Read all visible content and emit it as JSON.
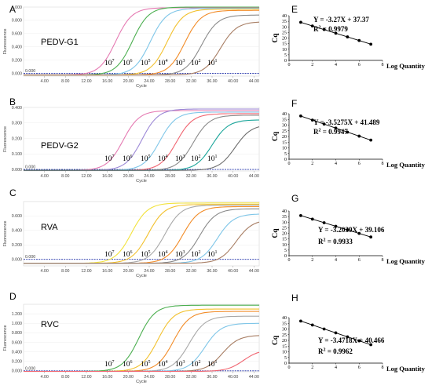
{
  "chart_data": [
    {
      "type": "line",
      "panel": "A",
      "target": "PEDV-G1",
      "xlabel": "Cycle",
      "ylabel": "Fluorescence",
      "threshold_label": "0.000",
      "xlim": [
        0,
        45
      ],
      "ylim": [
        -0.04,
        1.0
      ],
      "x_ticks": [
        "4.00",
        "8.00",
        "12.00",
        "16.00",
        "20.00",
        "24.00",
        "28.00",
        "32.00",
        "36.00",
        "40.00",
        "44.00"
      ],
      "y_ticks": [
        "0.000",
        "0.200",
        "0.400",
        "0.600",
        "0.800",
        "1.000"
      ],
      "concentration_labels": [
        "10",
        "10",
        "10",
        "10",
        "10",
        "10",
        "10"
      ],
      "concentration_exponents": [
        "7",
        "6",
        "5",
        "4",
        "3",
        "2",
        "1"
      ],
      "series": [
        {
          "color": "#e57ab2",
          "midpoint": 17.6,
          "max": 0.99
        },
        {
          "color": "#4caf50",
          "midpoint": 20.8,
          "max": 1.0
        },
        {
          "color": "#7fc6e8",
          "midpoint": 24.2,
          "max": 0.98
        },
        {
          "color": "#f2c12e",
          "midpoint": 27.4,
          "max": 0.97
        },
        {
          "color": "#f28c28",
          "midpoint": 30.8,
          "max": 0.95
        },
        {
          "color": "#8a8a8a",
          "midpoint": 34.0,
          "max": 0.88
        },
        {
          "color": "#a87e64",
          "midpoint": 37.6,
          "max": 0.78
        }
      ]
    },
    {
      "type": "line",
      "panel": "B",
      "target": "PEDV-G2",
      "xlabel": "Cycle",
      "ylabel": "Fluorescence",
      "threshold_label": "0.000",
      "xlim": [
        0,
        45
      ],
      "ylim": [
        -0.01,
        0.4
      ],
      "x_ticks": [
        "4.00",
        "8.00",
        "12.00",
        "16.00",
        "20.00",
        "24.00",
        "28.00",
        "32.00",
        "36.00",
        "40.00",
        "44.00"
      ],
      "y_ticks": [
        "0.000",
        "0.100",
        "0.200",
        "0.300",
        "0.400"
      ],
      "concentration_labels": [
        "10",
        "10",
        "10",
        "10",
        "10",
        "10",
        "10"
      ],
      "concentration_exponents": [
        "7",
        "6",
        "5",
        "4",
        "3",
        "2",
        "1"
      ],
      "series": [
        {
          "color": "#e57ab2",
          "midpoint": 19.0,
          "max": 0.38
        },
        {
          "color": "#9b87d6",
          "midpoint": 22.6,
          "max": 0.39
        },
        {
          "color": "#7fc6e8",
          "midpoint": 26.0,
          "max": 0.37
        },
        {
          "color": "#f06470",
          "midpoint": 29.2,
          "max": 0.36
        },
        {
          "color": "#8a8a8a",
          "midpoint": 32.4,
          "max": 0.35
        },
        {
          "color": "#1aa59a",
          "midpoint": 36.0,
          "max": 0.32
        },
        {
          "color": "#6e6e6e",
          "midpoint": 40.4,
          "max": 0.29
        }
      ]
    },
    {
      "type": "line",
      "panel": "C",
      "target": "RVA",
      "xlabel": "Cycle",
      "ylabel": "Fluorescence",
      "threshold_label": "0.000",
      "xlim": [
        0,
        45
      ],
      "ylim": [
        -0.09,
        0.8
      ],
      "x_ticks": [
        "4.00",
        "8.00",
        "12.00",
        "16.00",
        "20.00",
        "24.00",
        "28.00",
        "32.00",
        "36.00",
        "40.00",
        "44.00"
      ],
      "y_ticks": [
        "0.000",
        "0.200",
        "0.400",
        "0.600"
      ],
      "concentration_labels": [
        "10",
        "10",
        "10",
        "10",
        "10",
        "10",
        "10"
      ],
      "concentration_exponents": [
        "7",
        "6",
        "5",
        "4",
        "3",
        "2",
        "1"
      ],
      "series": [
        {
          "color": "#f2e23a",
          "midpoint": 20.6,
          "max": 0.78
        },
        {
          "color": "#f2c12e",
          "midpoint": 23.8,
          "max": 0.76
        },
        {
          "color": "#a8a8a8",
          "midpoint": 27.0,
          "max": 0.75
        },
        {
          "color": "#f28c28",
          "midpoint": 30.4,
          "max": 0.73
        },
        {
          "color": "#8a8a8a",
          "midpoint": 33.6,
          "max": 0.7
        },
        {
          "color": "#7fc6e8",
          "midpoint": 37.0,
          "max": 0.63
        },
        {
          "color": "#a87e64",
          "midpoint": 40.6,
          "max": 0.55
        }
      ]
    },
    {
      "type": "line",
      "panel": "D",
      "target": "RVC",
      "xlabel": "Cycle",
      "ylabel": "Fluorescence",
      "threshold_label": "0.000",
      "xlim": [
        0,
        45
      ],
      "ylim": [
        -0.02,
        1.4
      ],
      "x_ticks": [
        "4.00",
        "8.00",
        "12.00",
        "16.00",
        "20.00",
        "24.00",
        "28.00",
        "32.00",
        "36.00",
        "40.00",
        "44.00"
      ],
      "y_ticks": [
        "0.000",
        "0.200",
        "0.400",
        "0.600",
        "0.800",
        "1.000",
        "1.200"
      ],
      "concentration_labels": [
        "10",
        "10",
        "10",
        "10",
        "10",
        "10",
        "10"
      ],
      "concentration_exponents": [
        "7",
        "6",
        "5",
        "4",
        "3",
        "2",
        "1"
      ],
      "series": [
        {
          "color": "#4caf50",
          "midpoint": 22.0,
          "max": 1.38
        },
        {
          "color": "#f2c12e",
          "midpoint": 25.6,
          "max": 1.3
        },
        {
          "color": "#f28c28",
          "midpoint": 28.6,
          "max": 1.25
        },
        {
          "color": "#a8a8a8",
          "midpoint": 31.6,
          "max": 1.15
        },
        {
          "color": "#7fc6e8",
          "midpoint": 34.6,
          "max": 1.0
        },
        {
          "color": "#a87e64",
          "midpoint": 38.0,
          "max": 0.75
        },
        {
          "color": "#f06470",
          "midpoint": 42.0,
          "max": 0.45
        }
      ]
    },
    {
      "type": "scatter",
      "panel": "E",
      "xlabel": "Log Quantity",
      "ylabel": "Cq",
      "xlim": [
        0,
        8
      ],
      "ylim": [
        0,
        40
      ],
      "x_ticks": [
        "0",
        "2",
        "4",
        "6",
        "8"
      ],
      "y_ticks": [
        "0",
        "5",
        "10",
        "15",
        "20",
        "25",
        "30",
        "35",
        "40"
      ],
      "equation": "Y = -3.27X + 37.37",
      "r2_label": "R",
      "r2_exponent": "2",
      "r2_value": " = 0.9979",
      "x": [
        1,
        2,
        3,
        4,
        5,
        6,
        7
      ],
      "y": [
        34.1,
        30.8,
        27.6,
        24.3,
        21.0,
        17.8,
        14.5
      ]
    },
    {
      "type": "scatter",
      "panel": "F",
      "xlabel": "Log Quantity",
      "ylabel": "Cq",
      "xlim": [
        0,
        8
      ],
      "ylim": [
        0,
        40
      ],
      "x_ticks": [
        "0",
        "2",
        "4",
        "6",
        "8"
      ],
      "y_ticks": [
        "0",
        "5",
        "10",
        "15",
        "20",
        "25",
        "30",
        "35",
        "40"
      ],
      "equation": "Y = -3.5275X + 41.489",
      "r2_label": "R",
      "r2_exponent": "2",
      "r2_value": " = 0.9947",
      "x": [
        1,
        2,
        3,
        4,
        5,
        6,
        7
      ],
      "y": [
        38.0,
        34.4,
        30.9,
        27.4,
        23.8,
        20.3,
        16.8
      ]
    },
    {
      "type": "scatter",
      "panel": "G",
      "xlabel": "Log Quantity",
      "ylabel": "Cq",
      "xlim": [
        0,
        8
      ],
      "ylim": [
        0,
        40
      ],
      "x_ticks": [
        "0",
        "2",
        "4",
        "6",
        "8"
      ],
      "y_ticks": [
        "0",
        "5",
        "10",
        "15",
        "20",
        "25",
        "30",
        "35",
        "40"
      ],
      "equation": "Y = -3.2039X + 39.106",
      "r2_label": "R",
      "r2_exponent": "2",
      "r2_value": " = 0.9933",
      "x": [
        1,
        2,
        3,
        4,
        5,
        6,
        7
      ],
      "y": [
        35.9,
        32.7,
        29.5,
        26.3,
        23.1,
        19.9,
        16.7
      ]
    },
    {
      "type": "scatter",
      "panel": "H",
      "xlabel": "Log Quantity",
      "ylabel": "Cq",
      "xlim": [
        0,
        8
      ],
      "ylim": [
        0,
        40
      ],
      "x_ticks": [
        "0",
        "2",
        "4",
        "6",
        "8"
      ],
      "y_ticks": [
        "0",
        "5",
        "10",
        "15",
        "20",
        "25",
        "30",
        "35",
        "40"
      ],
      "equation": "Y = -3.4718X + 40.466",
      "r2_label": "R",
      "r2_exponent": "2",
      "r2_value": " = 0.9962",
      "x": [
        1,
        2,
        3,
        4,
        5,
        6,
        7
      ],
      "y": [
        37.0,
        33.5,
        30.0,
        26.6,
        23.1,
        19.6,
        16.2
      ]
    }
  ]
}
